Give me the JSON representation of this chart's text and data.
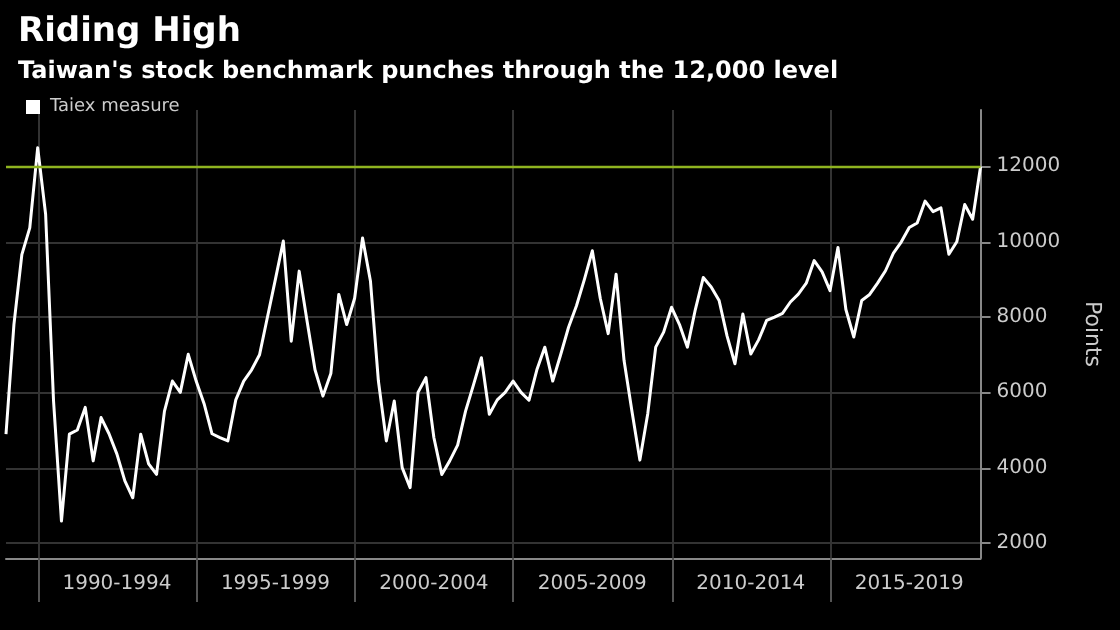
{
  "chart_data": {
    "type": "line",
    "title": "Riding High",
    "subtitle": "Taiwan's stock benchmark punches through the 12,000 level",
    "ylabel": "Points",
    "categories": [
      null,
      null,
      null,
      null,
      null,
      null,
      null,
      null,
      null,
      null,
      null,
      null,
      null,
      null,
      "1990-1994",
      null,
      null,
      null,
      null,
      null,
      null,
      null,
      null,
      null,
      null,
      null,
      null,
      null,
      null,
      null,
      null,
      null,
      null,
      null,
      "1995-1999",
      null,
      null,
      null,
      null,
      null,
      null,
      null,
      null,
      null,
      null,
      null,
      null,
      null,
      null,
      null,
      null,
      null,
      null,
      null,
      "2000-2004",
      null,
      null,
      null,
      null,
      null,
      null,
      null,
      null,
      null,
      null,
      null,
      null,
      null,
      null,
      null,
      null,
      null,
      null,
      null,
      "2005-2009",
      null,
      null,
      null,
      null,
      null,
      null,
      null,
      null,
      null,
      null,
      null,
      null,
      null,
      null,
      null,
      null,
      null,
      null,
      null,
      "2010-2014",
      null,
      null,
      null,
      null,
      null,
      null,
      null,
      null,
      null,
      null,
      null,
      null,
      null,
      null,
      null,
      null,
      null,
      null,
      null,
      "2015-2019",
      null,
      null,
      null,
      null,
      null,
      null,
      null,
      null,
      null
    ],
    "series": [
      {
        "name": "Taiex measure",
        "color": "#ffffff",
        "values": [
          4890,
          7800,
          9660,
          10370,
          12500,
          10730,
          5770,
          2580,
          4890,
          5000,
          5600,
          4180,
          5330,
          4900,
          4360,
          3650,
          3200,
          4890,
          4100,
          3820,
          5500,
          6300,
          6000,
          7010,
          6300,
          5700,
          4900,
          4800,
          4710,
          5800,
          6300,
          6600,
          7000,
          8000,
          9000,
          10020,
          7360,
          9220,
          7890,
          6600,
          5900,
          6500,
          8600,
          7800,
          8500,
          10100,
          8950,
          6300,
          4710,
          5770,
          4000,
          3470,
          6000,
          6390,
          4800,
          3820,
          4180,
          4600,
          5500,
          6200,
          6920,
          5420,
          5800,
          6000,
          6300,
          6000,
          5790,
          6600,
          7200,
          6300,
          7000,
          7730,
          8300,
          9000,
          9760,
          8500,
          7560,
          9140,
          6850,
          5500,
          4200,
          5440,
          7200,
          7600,
          8260,
          7800,
          7200,
          8200,
          9050,
          8800,
          8440,
          7500,
          6760,
          8080,
          7020,
          7400,
          7910,
          8000,
          8100,
          8400,
          8610,
          8900,
          9500,
          9200,
          8700,
          9850,
          8200,
          7470,
          8440,
          8600,
          8900,
          9230,
          9700,
          10000,
          10380,
          10500,
          11080,
          10800,
          10900,
          9670,
          10000,
          10990,
          10600,
          12000
        ]
      }
    ],
    "ylim": [
      1600,
      13500
    ],
    "yticks": [
      2000,
      4000,
      6000,
      8000,
      10000,
      12000
    ],
    "ref_lines": [
      {
        "axis": "y",
        "value": 12000,
        "label": null,
        "color": "#8fb320"
      }
    ],
    "grid": true,
    "legend": "top left",
    "marker": "none",
    "line_style": "solid"
  }
}
